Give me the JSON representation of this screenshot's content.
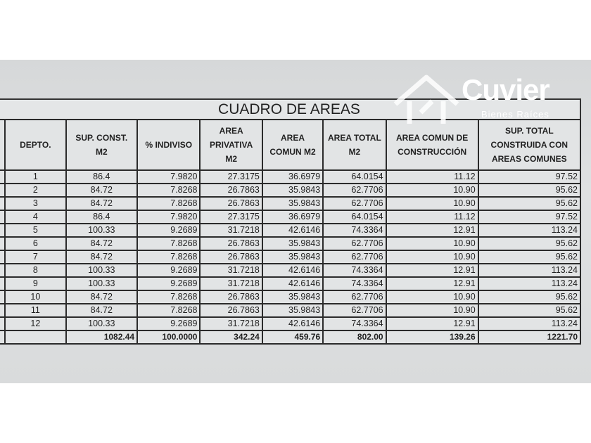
{
  "title": "CUADRO DE AREAS",
  "watermark": {
    "brand": "Cuvier",
    "tagline": "Bienes Raíces"
  },
  "columns": [
    "",
    "DEPTO.",
    "SUP. CONST. M2",
    "% INDIVISO",
    "AREA PRIVATIVA M2",
    "AREA COMUN M2",
    "AREA TOTAL M2",
    "AREA COMUN DE CONSTRUCCIÓN",
    "SUP. TOTAL CONSTRUIDA CON AREAS COMUNES"
  ],
  "rows": [
    [
      "1",
      "86.4",
      "7.9820",
      "27.3175",
      "36.6979",
      "64.0154",
      "11.12",
      "97.52"
    ],
    [
      "2",
      "84.72",
      "7.8268",
      "26.7863",
      "35.9843",
      "62.7706",
      "10.90",
      "95.62"
    ],
    [
      "3",
      "84.72",
      "7.8268",
      "26.7863",
      "35.9843",
      "62.7706",
      "10.90",
      "95.62"
    ],
    [
      "4",
      "86.4",
      "7.9820",
      "27.3175",
      "36.6979",
      "64.0154",
      "11.12",
      "97.52"
    ],
    [
      "5",
      "100.33",
      "9.2689",
      "31.7218",
      "42.6146",
      "74.3364",
      "12.91",
      "113.24"
    ],
    [
      "6",
      "84.72",
      "7.8268",
      "26.7863",
      "35.9843",
      "62.7706",
      "10.90",
      "95.62"
    ],
    [
      "7",
      "84.72",
      "7.8268",
      "26.7863",
      "35.9843",
      "62.7706",
      "10.90",
      "95.62"
    ],
    [
      "8",
      "100.33",
      "9.2689",
      "31.7218",
      "42.6146",
      "74.3364",
      "12.91",
      "113.24"
    ],
    [
      "9",
      "100.33",
      "9.2689",
      "31.7218",
      "42.6146",
      "74.3364",
      "12.91",
      "113.24"
    ],
    [
      "10",
      "84.72",
      "7.8268",
      "26.7863",
      "35.9843",
      "62.7706",
      "10.90",
      "95.62"
    ],
    [
      "11",
      "84.72",
      "7.8268",
      "26.7863",
      "35.9843",
      "62.7706",
      "10.90",
      "95.62"
    ],
    [
      "12",
      "100.33",
      "9.2689",
      "31.7218",
      "42.6146",
      "74.3364",
      "12.91",
      "113.24"
    ]
  ],
  "totals": [
    "",
    "1082.44",
    "100.0000",
    "342.24",
    "459.76",
    "802.00",
    "139.26",
    "1221.70"
  ]
}
